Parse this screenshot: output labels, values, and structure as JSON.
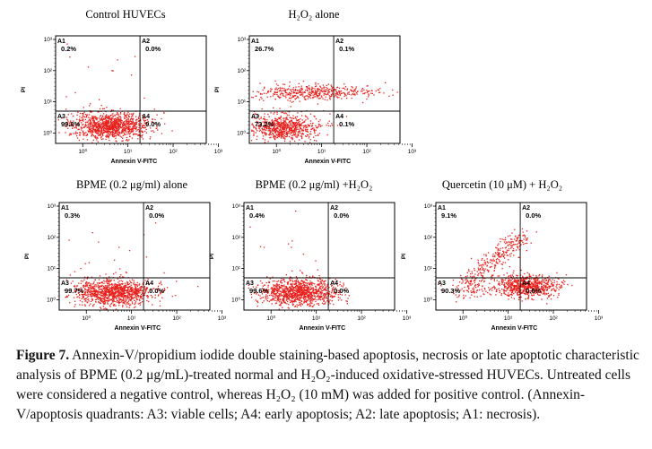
{
  "figure": {
    "x_axis_label": "Annexin V-FITC",
    "y_axis_label": "PI",
    "y_ticks": [
      "10³",
      "10²",
      "10¹",
      "10⁰"
    ],
    "x_ticks": [
      "10⁰",
      "10¹",
      "10²",
      "10³"
    ],
    "quadrant_names": [
      "A1",
      "A2",
      "A3",
      "A4"
    ],
    "dot_color": "#e8201c",
    "panels": [
      {
        "title": "Control HUVECs",
        "A1": "0.2%",
        "A2": "0.0%",
        "A3": "99.8%",
        "A4": "0.0%",
        "profile": "control"
      },
      {
        "title": "H₂O₂ alone",
        "A1": "26.7%",
        "A2": "0.1%",
        "A3": "73.2%",
        "A4": "0.1%",
        "profile": "h2o2"
      },
      {
        "title": "BPME (0.2 μg/ml) alone",
        "A1": "0.3%",
        "A2": "0.0%",
        "A3": "99.7%",
        "A4": "0.0%",
        "profile": "control"
      },
      {
        "title": "BPME (0.2 μg/ml) +H₂O₂",
        "A1": "0.4%",
        "A2": "0.0%",
        "A3": "99.6%",
        "A4": "0.0%",
        "profile": "control"
      },
      {
        "title": "Quercetin (10 μM) + H₂O₂",
        "A1": "9.1%",
        "A2": "0.0%",
        "A3": "90.3%",
        "A4": "0.6%",
        "profile": "quercetin"
      }
    ]
  },
  "caption": {
    "label": "Figure 7.",
    "text": "Annexin-V/propidium iodide double staining-based apoptosis, necrosis or late apoptotic characteristic analysis of BPME (0.2 μg/mL)-treated normal and H₂O₂-induced oxidative-stressed HUVECs. Untreated cells were considered a negative control, whereas H₂O₂ (10 mM) was added for positive control. (Annexin-V/apoptosis quadrants: A3: viable cells; A4: early apoptosis; A2: late apoptosis; A1: necrosis)."
  }
}
